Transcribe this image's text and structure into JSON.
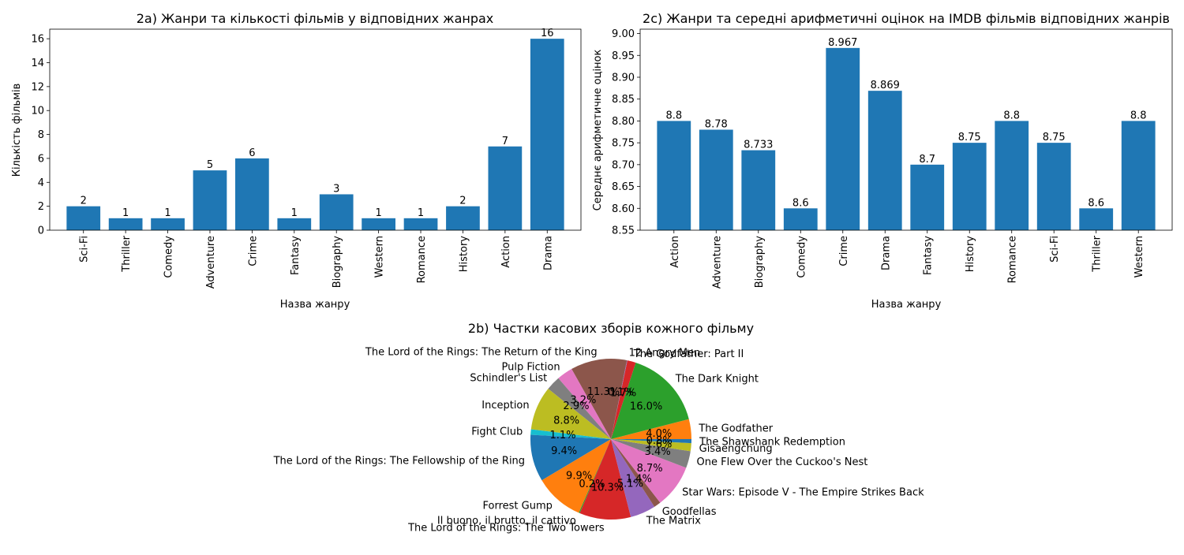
{
  "chart_data": [
    {
      "id": "2a",
      "type": "bar",
      "title": "2a) Жанри та кількості фільмів у відповідних жанрах",
      "xlabel": "Назва жанру",
      "ylabel": "Кількість фільмів",
      "categories": [
        "Sci-Fi",
        "Thriller",
        "Comedy",
        "Adventure",
        "Crime",
        "Fantasy",
        "Biography",
        "Western",
        "Romance",
        "History",
        "Action",
        "Drama"
      ],
      "values": [
        2,
        1,
        1,
        5,
        6,
        1,
        3,
        1,
        1,
        2,
        7,
        16
      ],
      "value_labels": [
        "2",
        "1",
        "1",
        "5",
        "6",
        "1",
        "3",
        "1",
        "1",
        "2",
        "7",
        "16"
      ],
      "ylim": [
        0,
        16.8
      ],
      "yticks": [
        0,
        2,
        4,
        6,
        8,
        10,
        12,
        14,
        16
      ],
      "ytick_labels": [
        "0",
        "2",
        "4",
        "6",
        "8",
        "10",
        "12",
        "14",
        "16"
      ],
      "color": "#1f77b4",
      "grid": false
    },
    {
      "id": "2c",
      "type": "bar",
      "title": "2c) Жанри та середні арифметичні оцінок на IMDB фільмів відповідних жанрів",
      "xlabel": "Назва жанру",
      "ylabel": "Середнє арифметичне оцінок",
      "categories": [
        "Action",
        "Adventure",
        "Biography",
        "Comedy",
        "Crime",
        "Drama",
        "Fantasy",
        "History",
        "Romance",
        "Sci-Fi",
        "Thriller",
        "Western"
      ],
      "values": [
        8.8,
        8.78,
        8.733,
        8.6,
        8.967,
        8.869,
        8.7,
        8.75,
        8.8,
        8.75,
        8.6,
        8.8
      ],
      "value_labels": [
        "8.8",
        "8.78",
        "8.733",
        "8.6",
        "8.967",
        "8.869",
        "8.7",
        "8.75",
        "8.8",
        "8.75",
        "8.6",
        "8.8"
      ],
      "ylim": [
        8.55,
        9.01
      ],
      "yticks": [
        8.55,
        8.6,
        8.65,
        8.7,
        8.75,
        8.8,
        8.85,
        8.9,
        8.95,
        9.0
      ],
      "ytick_labels": [
        "8.55",
        "8.60",
        "8.65",
        "8.70",
        "8.75",
        "8.80",
        "8.85",
        "8.90",
        "8.95",
        "9.00"
      ],
      "color": "#1f77b4",
      "grid": false
    },
    {
      "id": "2b",
      "type": "pie",
      "title": "2b) Частки касових зборів кожного фільму",
      "start_angle_deg": 0,
      "direction": "counterclockwise",
      "slices": [
        {
          "label": "The Godfather",
          "value": 4.0,
          "pct_label": "4.0%",
          "color": "#ff7f0e"
        },
        {
          "label": "The Dark Knight",
          "value": 16.0,
          "pct_label": "16.0%",
          "color": "#2ca02c"
        },
        {
          "label": "The Godfather: Part II",
          "value": 1.7,
          "pct_label": "1.7%",
          "color": "#d62728"
        },
        {
          "label": "12 Angry Men",
          "value": 0.1,
          "pct_label": "0.1%",
          "color": "#9467bd"
        },
        {
          "label": "The Lord of the Rings: The Return of the King",
          "value": 11.3,
          "pct_label": "11.3%",
          "color": "#8c564b"
        },
        {
          "label": "Pulp Fiction",
          "value": 3.2,
          "pct_label": "3.2%",
          "color": "#e377c2"
        },
        {
          "label": "Schindler's List",
          "value": 2.9,
          "pct_label": "2.9%",
          "color": "#7f7f7f"
        },
        {
          "label": "Inception",
          "value": 8.8,
          "pct_label": "8.8%",
          "color": "#bcbd22"
        },
        {
          "label": "Fight Club",
          "value": 1.1,
          "pct_label": "1.1%",
          "color": "#17becf"
        },
        {
          "label": "The Lord of the Rings: The Fellowship of the Ring",
          "value": 9.4,
          "pct_label": "9.4%",
          "color": "#1f77b4"
        },
        {
          "label": "Forrest Gump",
          "value": 9.9,
          "pct_label": "9.9%",
          "color": "#ff7f0e"
        },
        {
          "label": "Il buono, il brutto, il cattivo",
          "value": 0.2,
          "pct_label": "0.2%",
          "color": "#2ca02c"
        },
        {
          "label": "The Lord of the Rings: The Two Towers",
          "value": 10.3,
          "pct_label": "10.3%",
          "color": "#d62728"
        },
        {
          "label": "The Matrix",
          "value": 5.1,
          "pct_label": "5.1%",
          "color": "#9467bd"
        },
        {
          "label": "Goodfellas",
          "value": 1.4,
          "pct_label": "1.4%",
          "color": "#8c564b"
        },
        {
          "label": "Star Wars: Episode V - The Empire Strikes Back",
          "value": 8.7,
          "pct_label": "8.7%",
          "color": "#e377c2"
        },
        {
          "label": "One Flew Over the Cuckoo's Nest",
          "value": 3.4,
          "pct_label": "3.4%",
          "color": "#7f7f7f"
        },
        {
          "label": "Gisaengchung",
          "value": 1.6,
          "pct_label": "1.6%",
          "color": "#bcbd22"
        },
        {
          "label": "The Shawshank Redemption",
          "value": 0.8,
          "pct_label": "0.8%",
          "color": "#1f77b4"
        }
      ]
    }
  ]
}
